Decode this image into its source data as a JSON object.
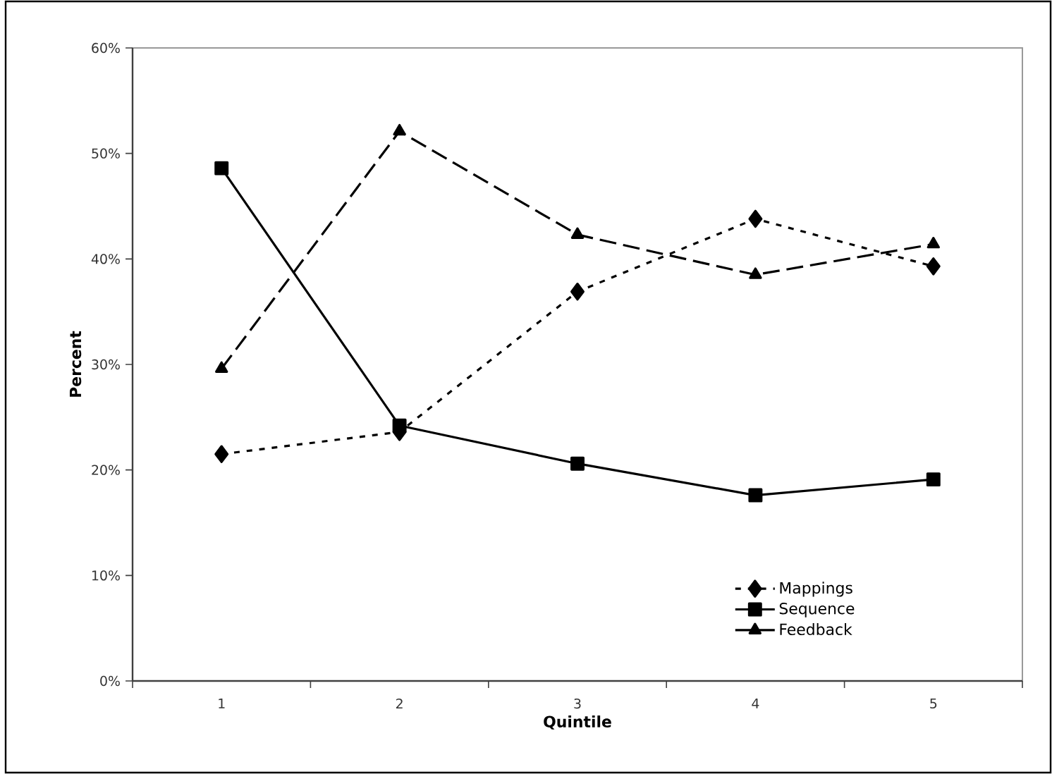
{
  "chart_data": {
    "type": "line",
    "xlabel": "Quintile",
    "ylabel": "Percent",
    "categories": [
      "1",
      "2",
      "3",
      "4",
      "5"
    ],
    "ylim": [
      0,
      60
    ],
    "yticks": [
      {
        "value": 0,
        "label": "0%"
      },
      {
        "value": 10,
        "label": "10%"
      },
      {
        "value": 20,
        "label": "20%"
      },
      {
        "value": 30,
        "label": "30%"
      },
      {
        "value": 40,
        "label": "40%"
      },
      {
        "value": 50,
        "label": "50%"
      },
      {
        "value": 60,
        "label": "60%"
      }
    ],
    "series": [
      {
        "name": "Mappings",
        "color": "#000000",
        "marker": "diamond",
        "line_style": "dashed",
        "values": [
          21.5,
          23.6,
          36.9,
          43.8,
          39.3
        ]
      },
      {
        "name": "Sequence",
        "color": "#000000",
        "marker": "square",
        "line_style": "solid",
        "values": [
          48.6,
          24.2,
          20.6,
          17.6,
          19.1
        ]
      },
      {
        "name": "Feedback",
        "color": "#000000",
        "marker": "triangle",
        "line_style": "longdashed",
        "values": [
          29.6,
          52.1,
          42.3,
          38.5,
          41.4
        ]
      }
    ],
    "legend": "bottom right",
    "grid": false
  }
}
